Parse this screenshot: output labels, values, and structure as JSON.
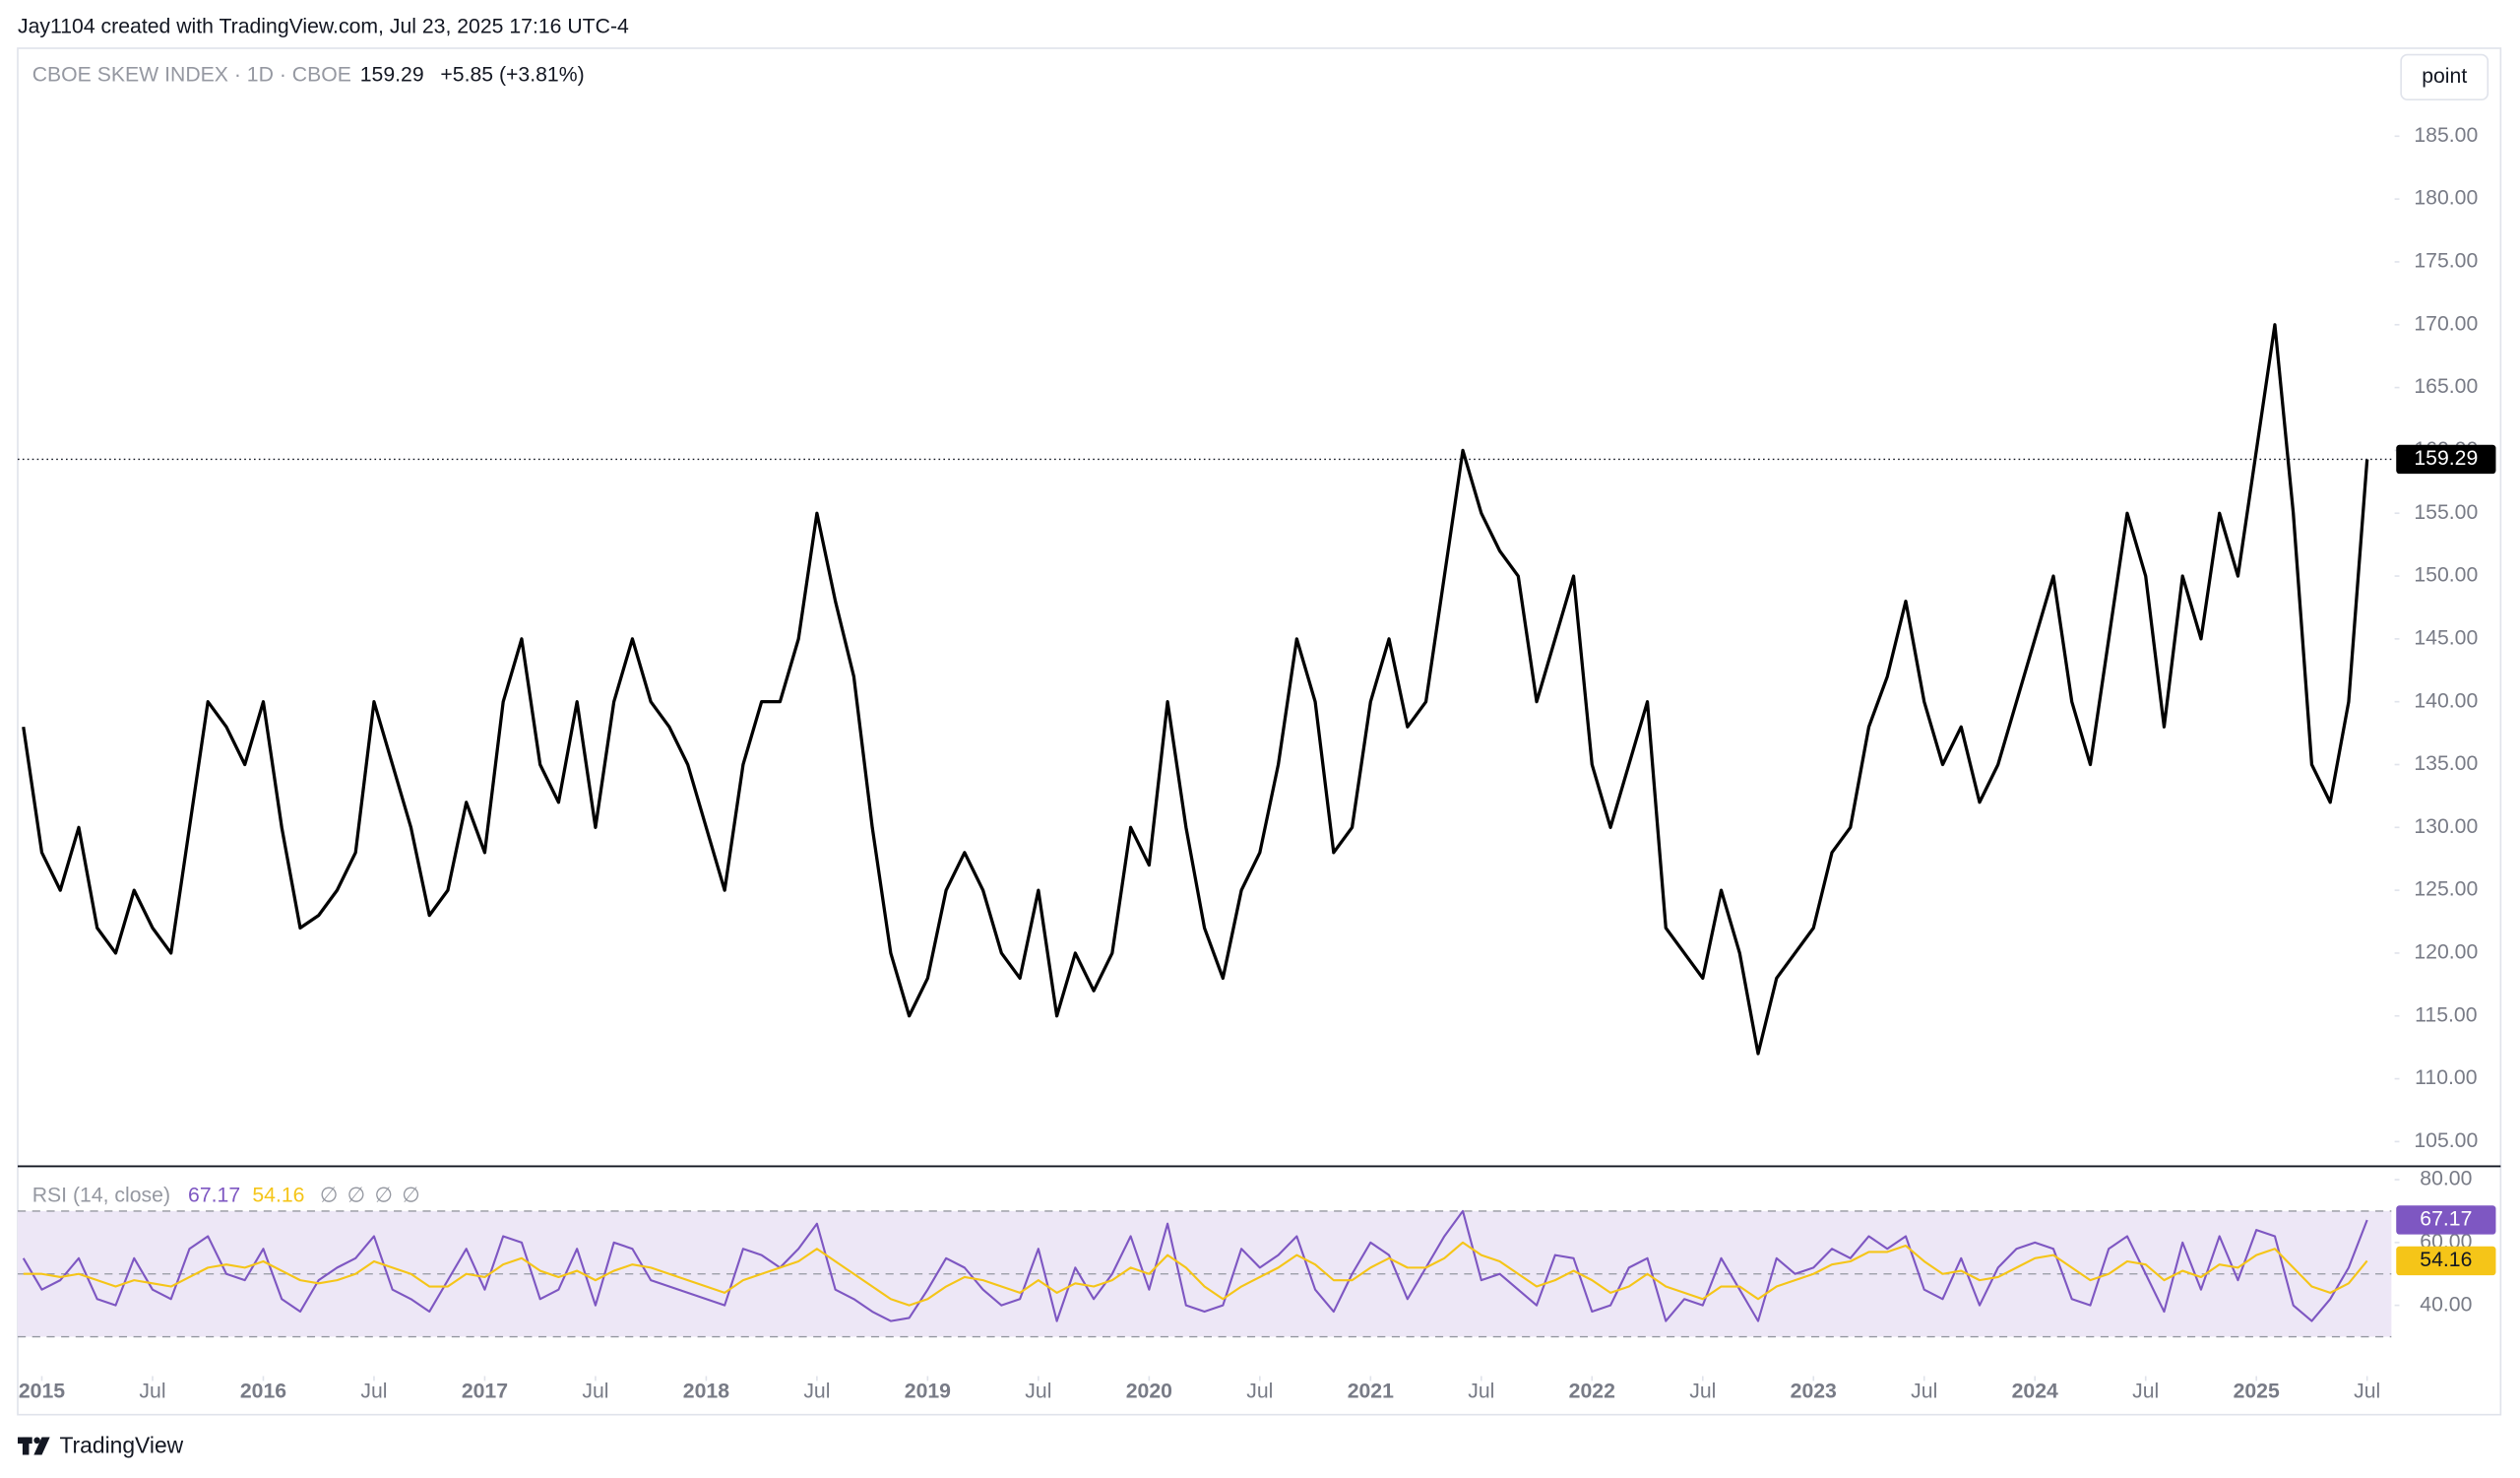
{
  "header": {
    "title": "Jay1104 created with TradingView.com, Jul 23, 2025 17:16 UTC-4"
  },
  "toolbar": {
    "scale": "point"
  },
  "footer": {
    "brand": "TradingView"
  },
  "chart_data": [
    {
      "type": "line",
      "legend": {
        "name": "CBOE SKEW INDEX · 1D · CBOE",
        "last": "159.29",
        "change": "+5.85 (+3.81%)"
      },
      "x": [
        "2014-12",
        "2015-01",
        "2015-02",
        "2015-03",
        "2015-04",
        "2015-05",
        "2015-06",
        "2015-07",
        "2015-08",
        "2015-09",
        "2015-10",
        "2015-11",
        "2015-12",
        "2016-01",
        "2016-02",
        "2016-03",
        "2016-04",
        "2016-05",
        "2016-06",
        "2016-07",
        "2016-08",
        "2016-09",
        "2016-10",
        "2016-11",
        "2016-12",
        "2017-01",
        "2017-02",
        "2017-03",
        "2017-04",
        "2017-05",
        "2017-06",
        "2017-07",
        "2017-08",
        "2017-09",
        "2017-10",
        "2017-11",
        "2017-12",
        "2018-01",
        "2018-02",
        "2018-03",
        "2018-04",
        "2018-05",
        "2018-06",
        "2018-07",
        "2018-08",
        "2018-09",
        "2018-10",
        "2018-11",
        "2018-12",
        "2019-01",
        "2019-02",
        "2019-03",
        "2019-04",
        "2019-05",
        "2019-06",
        "2019-07",
        "2019-08",
        "2019-09",
        "2019-10",
        "2019-11",
        "2019-12",
        "2020-01",
        "2020-02",
        "2020-03",
        "2020-04",
        "2020-05",
        "2020-06",
        "2020-07",
        "2020-08",
        "2020-09",
        "2020-10",
        "2020-11",
        "2020-12",
        "2021-01",
        "2021-02",
        "2021-03",
        "2021-04",
        "2021-05",
        "2021-06",
        "2021-07",
        "2021-08",
        "2021-09",
        "2021-10",
        "2021-11",
        "2021-12",
        "2022-01",
        "2022-02",
        "2022-03",
        "2022-04",
        "2022-05",
        "2022-06",
        "2022-07",
        "2022-08",
        "2022-09",
        "2022-10",
        "2022-11",
        "2022-12",
        "2023-01",
        "2023-02",
        "2023-03",
        "2023-04",
        "2023-05",
        "2023-06",
        "2023-07",
        "2023-08",
        "2023-09",
        "2023-10",
        "2023-11",
        "2023-12",
        "2024-01",
        "2024-02",
        "2024-03",
        "2024-04",
        "2024-05",
        "2024-06",
        "2024-07",
        "2024-08",
        "2024-09",
        "2024-10",
        "2024-11",
        "2024-12",
        "2025-01",
        "2025-02",
        "2025-03",
        "2025-04",
        "2025-05",
        "2025-06",
        "2025-07"
      ],
      "series": [
        {
          "name": "CBOE SKEW INDEX",
          "color": "#000000",
          "values": [
            138,
            128,
            125,
            130,
            122,
            120,
            125,
            122,
            120,
            130,
            140,
            138,
            135,
            140,
            130,
            122,
            123,
            125,
            128,
            140,
            135,
            130,
            123,
            125,
            132,
            128,
            140,
            145,
            135,
            132,
            140,
            130,
            140,
            145,
            140,
            138,
            135,
            130,
            125,
            135,
            140,
            140,
            145,
            155,
            148,
            142,
            130,
            120,
            115,
            118,
            125,
            128,
            125,
            120,
            118,
            125,
            115,
            120,
            117,
            120,
            130,
            127,
            140,
            130,
            122,
            118,
            125,
            128,
            135,
            145,
            140,
            128,
            130,
            140,
            145,
            138,
            140,
            150,
            160,
            155,
            152,
            150,
            140,
            145,
            150,
            135,
            130,
            135,
            140,
            122,
            120,
            118,
            125,
            120,
            112,
            118,
            120,
            122,
            128,
            130,
            138,
            142,
            148,
            140,
            135,
            138,
            132,
            135,
            140,
            145,
            150,
            140,
            135,
            145,
            155,
            150,
            138,
            150,
            145,
            155,
            150,
            160,
            170,
            155,
            135,
            132,
            140,
            159.29
          ]
        }
      ],
      "ylim": [
        103.1,
        192.0
      ],
      "yticks": [
        {
          "value": 105,
          "label": "105.00"
        },
        {
          "value": 110,
          "label": "110.00"
        },
        {
          "value": 115,
          "label": "115.00"
        },
        {
          "value": 120,
          "label": "120.00"
        },
        {
          "value": 125,
          "label": "125.00"
        },
        {
          "value": 130,
          "label": "130.00"
        },
        {
          "value": 135,
          "label": "135.00"
        },
        {
          "value": 140,
          "label": "140.00"
        },
        {
          "value": 145,
          "label": "145.00"
        },
        {
          "value": 150,
          "label": "150.00"
        },
        {
          "value": 155,
          "label": "155.00"
        },
        {
          "value": 160,
          "label": "160.00"
        },
        {
          "value": 165,
          "label": "165.00"
        },
        {
          "value": 170,
          "label": "170.00"
        },
        {
          "value": 175,
          "label": "175.00"
        },
        {
          "value": 180,
          "label": "180.00"
        },
        {
          "value": 185,
          "label": "185.00"
        }
      ],
      "xticks": [
        {
          "value": "2015-01",
          "label": "2015"
        },
        {
          "value": "2015-07",
          "label": "Jul"
        },
        {
          "value": "2016-01",
          "label": "2016"
        },
        {
          "value": "2016-07",
          "label": "Jul"
        },
        {
          "value": "2017-01",
          "label": "2017"
        },
        {
          "value": "2017-07",
          "label": "Jul"
        },
        {
          "value": "2018-01",
          "label": "2018"
        },
        {
          "value": "2018-07",
          "label": "Jul"
        },
        {
          "value": "2019-01",
          "label": "2019"
        },
        {
          "value": "2019-07",
          "label": "Jul"
        },
        {
          "value": "2020-01",
          "label": "2020"
        },
        {
          "value": "2020-07",
          "label": "Jul"
        },
        {
          "value": "2021-01",
          "label": "2021"
        },
        {
          "value": "2021-07",
          "label": "Jul"
        },
        {
          "value": "2022-01",
          "label": "2022"
        },
        {
          "value": "2022-07",
          "label": "Jul"
        },
        {
          "value": "2023-01",
          "label": "2023"
        },
        {
          "value": "2023-07",
          "label": "Jul"
        },
        {
          "value": "2024-01",
          "label": "2024"
        },
        {
          "value": "2024-07",
          "label": "Jul"
        },
        {
          "value": "2025-01",
          "label": "2025"
        },
        {
          "value": "2025-07",
          "label": "Jul"
        }
      ]
    },
    {
      "type": "line",
      "title": "RSI (14, close)",
      "legend": {
        "rsi": "67.17",
        "ma": "54.16",
        "extras": [
          "∅",
          "∅",
          "∅",
          "∅"
        ]
      },
      "x": [
        "2014-12",
        "2015-01",
        "2015-02",
        "2015-03",
        "2015-04",
        "2015-05",
        "2015-06",
        "2015-07",
        "2015-08",
        "2015-09",
        "2015-10",
        "2015-11",
        "2015-12",
        "2016-01",
        "2016-02",
        "2016-03",
        "2016-04",
        "2016-05",
        "2016-06",
        "2016-07",
        "2016-08",
        "2016-09",
        "2016-10",
        "2016-11",
        "2016-12",
        "2017-01",
        "2017-02",
        "2017-03",
        "2017-04",
        "2017-05",
        "2017-06",
        "2017-07",
        "2017-08",
        "2017-09",
        "2017-10",
        "2017-11",
        "2017-12",
        "2018-01",
        "2018-02",
        "2018-03",
        "2018-04",
        "2018-05",
        "2018-06",
        "2018-07",
        "2018-08",
        "2018-09",
        "2018-10",
        "2018-11",
        "2018-12",
        "2019-01",
        "2019-02",
        "2019-03",
        "2019-04",
        "2019-05",
        "2019-06",
        "2019-07",
        "2019-08",
        "2019-09",
        "2019-10",
        "2019-11",
        "2019-12",
        "2020-01",
        "2020-02",
        "2020-03",
        "2020-04",
        "2020-05",
        "2020-06",
        "2020-07",
        "2020-08",
        "2020-09",
        "2020-10",
        "2020-11",
        "2020-12",
        "2021-01",
        "2021-02",
        "2021-03",
        "2021-04",
        "2021-05",
        "2021-06",
        "2021-07",
        "2021-08",
        "2021-09",
        "2021-10",
        "2021-11",
        "2021-12",
        "2022-01",
        "2022-02",
        "2022-03",
        "2022-04",
        "2022-05",
        "2022-06",
        "2022-07",
        "2022-08",
        "2022-09",
        "2022-10",
        "2022-11",
        "2022-12",
        "2023-01",
        "2023-02",
        "2023-03",
        "2023-04",
        "2023-05",
        "2023-06",
        "2023-07",
        "2023-08",
        "2023-09",
        "2023-10",
        "2023-11",
        "2023-12",
        "2024-01",
        "2024-02",
        "2024-03",
        "2024-04",
        "2024-05",
        "2024-06",
        "2024-07",
        "2024-08",
        "2024-09",
        "2024-10",
        "2024-11",
        "2024-12",
        "2025-01",
        "2025-02",
        "2025-03",
        "2025-04",
        "2025-05",
        "2025-06",
        "2025-07"
      ],
      "series": [
        {
          "name": "RSI",
          "color": "#7e57c2",
          "values": [
            55,
            45,
            48,
            55,
            42,
            40,
            55,
            45,
            42,
            58,
            62,
            50,
            48,
            58,
            42,
            38,
            48,
            52,
            55,
            62,
            45,
            42,
            38,
            48,
            58,
            45,
            62,
            60,
            42,
            45,
            58,
            40,
            60,
            58,
            48,
            46,
            44,
            42,
            40,
            58,
            56,
            52,
            58,
            66,
            45,
            42,
            38,
            35,
            36,
            45,
            55,
            52,
            45,
            40,
            42,
            58,
            35,
            52,
            42,
            50,
            62,
            45,
            66,
            40,
            38,
            40,
            58,
            52,
            56,
            62,
            45,
            38,
            50,
            60,
            56,
            42,
            52,
            62,
            70,
            48,
            50,
            45,
            40,
            56,
            55,
            38,
            40,
            52,
            55,
            35,
            42,
            40,
            55,
            45,
            35,
            55,
            50,
            52,
            58,
            55,
            62,
            58,
            62,
            45,
            42,
            55,
            40,
            52,
            58,
            60,
            58,
            42,
            40,
            58,
            62,
            50,
            38,
            60,
            45,
            62,
            48,
            64,
            62,
            40,
            35,
            42,
            52,
            67.17
          ]
        },
        {
          "name": "RSI-based MA",
          "color": "#f5c518",
          "values": [
            50,
            50,
            49,
            50,
            48,
            46,
            48,
            47,
            46,
            49,
            52,
            53,
            52,
            54,
            51,
            48,
            47,
            48,
            50,
            54,
            52,
            50,
            46,
            46,
            50,
            49,
            53,
            55,
            51,
            49,
            51,
            48,
            51,
            53,
            52,
            50,
            48,
            46,
            44,
            48,
            50,
            52,
            54,
            58,
            54,
            50,
            46,
            42,
            40,
            42,
            46,
            49,
            48,
            46,
            44,
            48,
            44,
            47,
            46,
            48,
            52,
            50,
            56,
            52,
            46,
            42,
            46,
            49,
            52,
            56,
            53,
            48,
            48,
            52,
            55,
            52,
            52,
            55,
            60,
            56,
            54,
            50,
            46,
            48,
            51,
            48,
            44,
            46,
            50,
            46,
            44,
            42,
            46,
            46,
            42,
            46,
            48,
            50,
            53,
            54,
            57,
            57,
            59,
            54,
            50,
            51,
            48,
            49,
            52,
            55,
            56,
            52,
            48,
            50,
            54,
            53,
            48,
            51,
            49,
            53,
            52,
            56,
            58,
            52,
            46,
            44,
            47,
            54.16
          ]
        }
      ],
      "ylim": [
        18,
        84
      ],
      "yticks": [
        {
          "value": 40,
          "label": "40.00"
        },
        {
          "value": 60,
          "label": "60.00"
        },
        {
          "value": 80,
          "label": "80.00"
        }
      ],
      "levels": [
        70,
        50,
        30
      ],
      "band_color": "#ede7f6"
    }
  ]
}
